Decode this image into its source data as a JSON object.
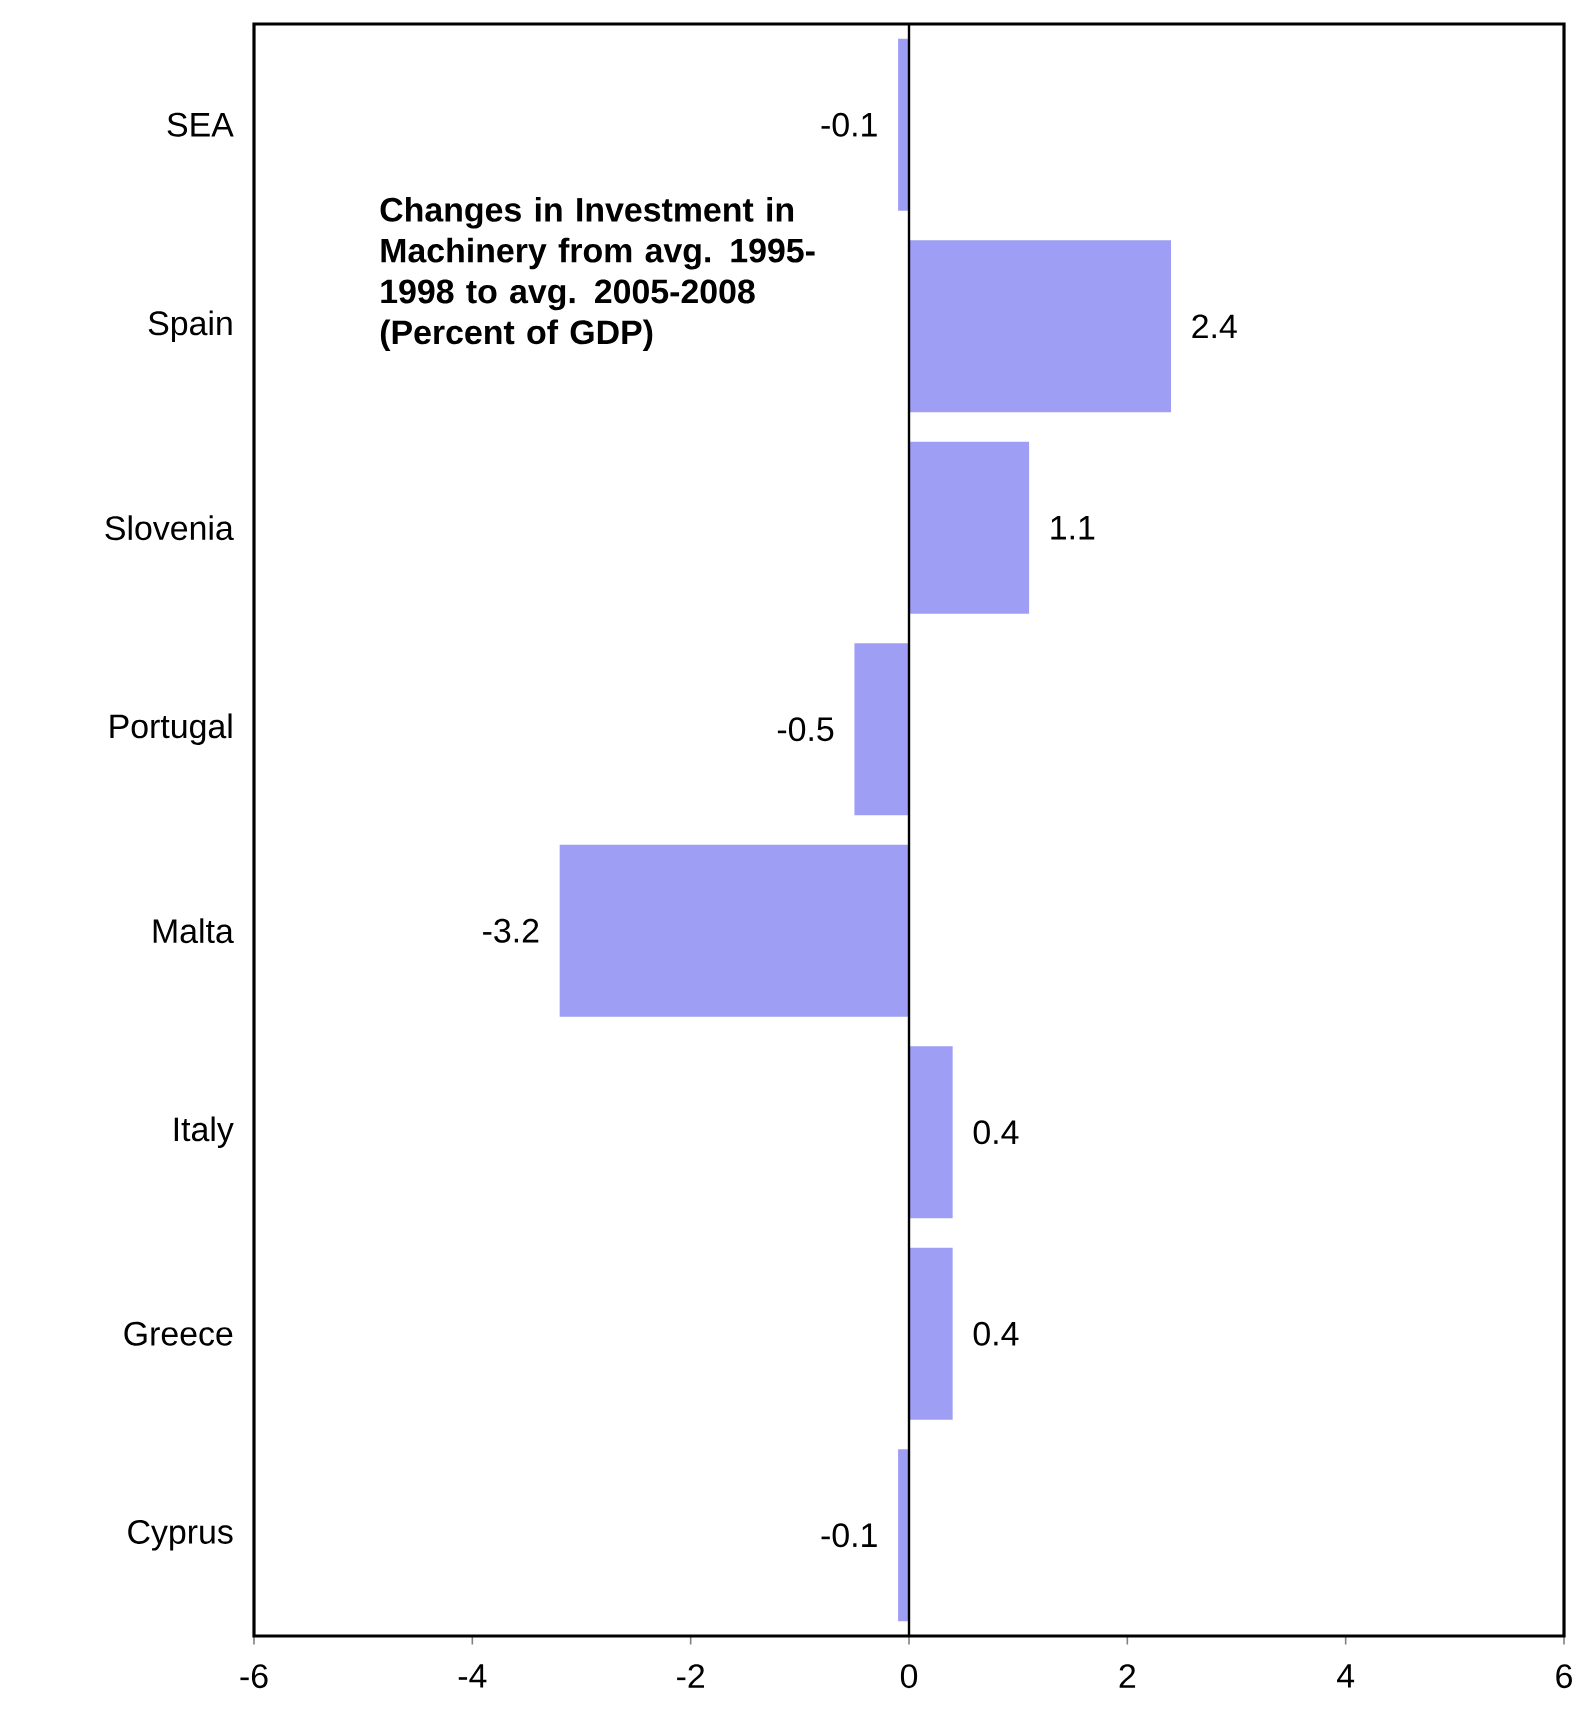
{
  "chart_data": {
    "type": "bar",
    "orientation": "horizontal",
    "title": "Changes in Investment in Machinery from avg. 1995-1998 to avg. 2005-2008",
    "subtitle": "(Percent of GDP)",
    "categories": [
      "SEA",
      "Spain",
      "Slovenia",
      "Portugal",
      "Malta",
      "Italy",
      "Greece",
      "Cyprus"
    ],
    "values": [
      -0.1,
      2.4,
      1.1,
      -0.5,
      -3.2,
      0.4,
      0.4,
      -0.1
    ],
    "color": "#9e9ef5",
    "data_labels": true,
    "xlim": [
      -6,
      6
    ],
    "xticks": [
      -6,
      -4,
      -2,
      0,
      2,
      4,
      6
    ]
  }
}
